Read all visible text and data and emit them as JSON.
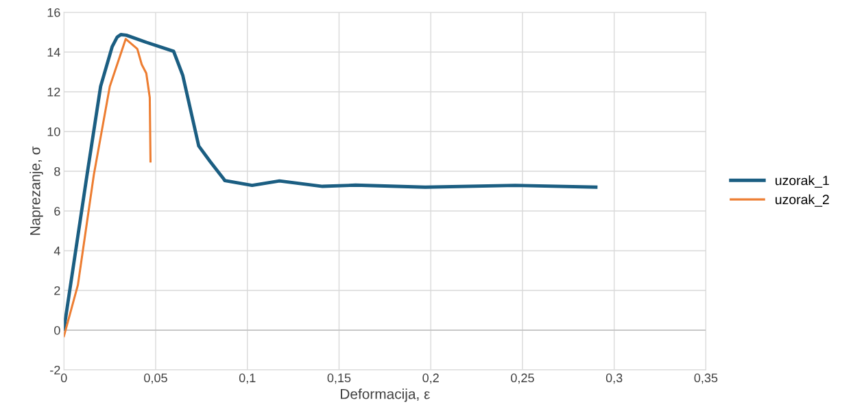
{
  "chart_data": {
    "type": "line",
    "xlabel": "Deformacija, ε",
    "ylabel": "Naprezanje, σ",
    "xlim": [
      0,
      0.35
    ],
    "ylim": [
      -2,
      16
    ],
    "xticks": [
      {
        "value": 0,
        "label": "0"
      },
      {
        "value": 0.05,
        "label": "0,05"
      },
      {
        "value": 0.1,
        "label": "0,1"
      },
      {
        "value": 0.15,
        "label": "0,15"
      },
      {
        "value": 0.2,
        "label": "0,2"
      },
      {
        "value": 0.25,
        "label": "0,25"
      },
      {
        "value": 0.3,
        "label": "0,3"
      },
      {
        "value": 0.35,
        "label": "0,35"
      }
    ],
    "yticks": [
      -2,
      0,
      2,
      4,
      6,
      8,
      10,
      12,
      14,
      16
    ],
    "grid": true,
    "legend": "right",
    "series": [
      {
        "name": "uzorak_1",
        "color": "#1b5e82",
        "x": [
          0,
          0.0126,
          0.02,
          0.0263,
          0.029,
          0.031,
          0.034,
          0.0449,
          0.0598,
          0.0648,
          0.0735,
          0.0797,
          0.0872,
          0.0877,
          0.1026,
          0.1175,
          0.141,
          0.159,
          0.197,
          0.246,
          0.29
        ],
        "values": [
          0.05,
          7.82,
          12.27,
          14.27,
          14.75,
          14.88,
          14.85,
          14.49,
          14.04,
          12.82,
          9.27,
          8.49,
          7.6,
          7.53,
          7.29,
          7.51,
          7.24,
          7.3,
          7.2,
          7.29,
          7.2
        ]
      },
      {
        "name": "uzorak_2",
        "color": "#ed7d31",
        "x": [
          0,
          0.0076,
          0.0163,
          0.025,
          0.0337,
          0.04,
          0.0424,
          0.0449,
          0.0468,
          0.0472
        ],
        "values": [
          -0.3,
          2.27,
          7.82,
          12.27,
          14.66,
          14.16,
          13.38,
          12.93,
          11.71,
          8.49
        ]
      }
    ]
  }
}
